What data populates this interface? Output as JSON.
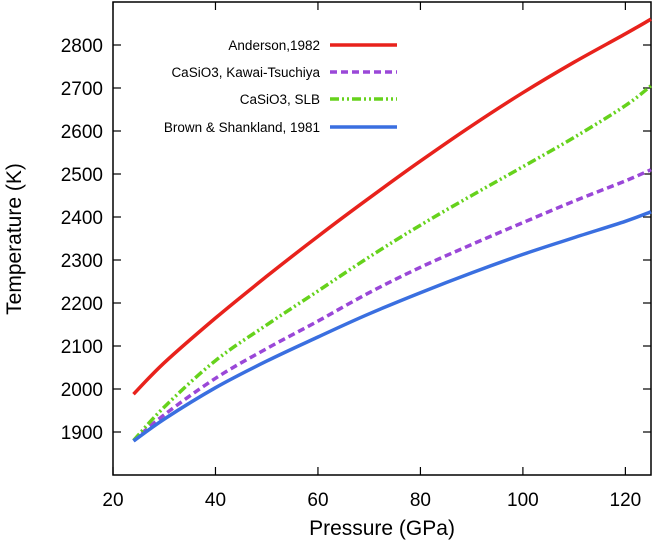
{
  "chart_data": {
    "type": "line",
    "title": "",
    "xlabel": "Pressure (GPa)",
    "ylabel": "Temperature (K)",
    "xlim": [
      20,
      125
    ],
    "ylim": [
      1800,
      2900
    ],
    "xticks": [
      20,
      40,
      60,
      80,
      100,
      120
    ],
    "yticks": [
      1900,
      2000,
      2100,
      2200,
      2300,
      2400,
      2500,
      2600,
      2700,
      2800
    ],
    "legend_position": "top-left",
    "grid": false,
    "series": [
      {
        "name": "Anderson,1982",
        "color": "#e8221c",
        "dash": "solid",
        "x": [
          24,
          30,
          40,
          50,
          60,
          70,
          80,
          90,
          100,
          110,
          120,
          125
        ],
        "y": [
          1988,
          2061,
          2165,
          2262,
          2355,
          2444,
          2530,
          2612,
          2689,
          2760,
          2826,
          2860
        ]
      },
      {
        "name": "CaSiO3, Kawai-Tsuchiya",
        "color": "#9a47d8",
        "dash": "dashed",
        "x": [
          24,
          30,
          40,
          50,
          60,
          70,
          80,
          90,
          100,
          110,
          120,
          125
        ],
        "y": [
          1880,
          1940,
          2025,
          2094,
          2158,
          2224,
          2283,
          2336,
          2387,
          2437,
          2484,
          2510
        ]
      },
      {
        "name": "CaSiO3, SLB",
        "color": "#66d21c",
        "dash": "dash-dot-dot",
        "x": [
          24,
          30,
          40,
          50,
          60,
          70,
          80,
          90,
          100,
          110,
          120,
          125
        ],
        "y": [
          1880,
          1958,
          2066,
          2149,
          2228,
          2307,
          2381,
          2450,
          2517,
          2585,
          2659,
          2705
        ]
      },
      {
        "name": "Brown & Shankland, 1981",
        "color": "#3a6fe0",
        "dash": "solid",
        "x": [
          24,
          30,
          40,
          50,
          60,
          70,
          80,
          90,
          100,
          110,
          120,
          125
        ],
        "y": [
          1879,
          1930,
          2003,
          2065,
          2121,
          2175,
          2224,
          2270,
          2313,
          2352,
          2390,
          2412
        ]
      }
    ]
  }
}
